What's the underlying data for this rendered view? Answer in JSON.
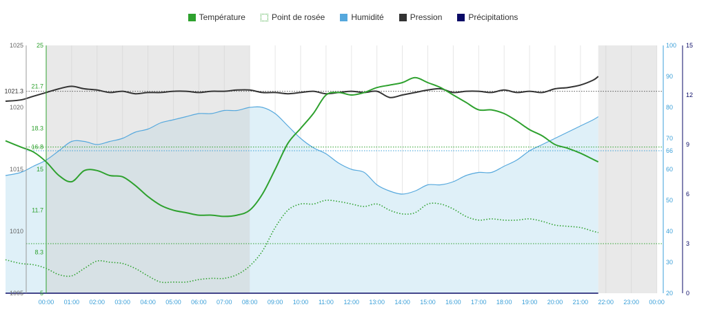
{
  "legend": [
    {
      "label": "Température",
      "color": "#2ea12e",
      "style": "solid"
    },
    {
      "label": "Point de rosée",
      "color": "#2ea12e",
      "style": "dotted"
    },
    {
      "label": "Humidité",
      "color": "#55a8dd",
      "style": "solid"
    },
    {
      "label": "Pression",
      "color": "#333333",
      "style": "solid"
    },
    {
      "label": "Précipitations",
      "color": "#0a0a66",
      "style": "solid"
    }
  ],
  "chart_data": {
    "type": "line",
    "x_labels": [
      "00:00",
      "01:00",
      "02:00",
      "03:00",
      "04:00",
      "05:00",
      "06:00",
      "07:00",
      "08:00",
      "09:00",
      "10:00",
      "11:00",
      "12:00",
      "13:00",
      "14:00",
      "15:00",
      "16:00",
      "17:00",
      "18:00",
      "19:00",
      "20:00",
      "21:00",
      "22:00",
      "23:00",
      "00:00"
    ],
    "night_shading": [
      [
        0,
        8
      ],
      [
        21.7,
        24
      ]
    ],
    "axes": {
      "pressure": {
        "ticks": [
          1005,
          1010,
          1015,
          1020,
          1025
        ],
        "min": 1005,
        "max": 1025,
        "extra_labels": [
          "1021.3"
        ],
        "color": "#666666"
      },
      "temperature": {
        "ticks": [
          "5",
          "8.3",
          "11.7",
          "15",
          "18.3",
          "21.7",
          "25"
        ],
        "min": 5,
        "max": 25,
        "extra_labels": [
          "16.8"
        ],
        "color": "#2ea12e"
      },
      "humidity": {
        "ticks": [
          20,
          30,
          40,
          50,
          60,
          70,
          80,
          90,
          100
        ],
        "min": 20,
        "max": 100,
        "extra_labels": [
          "66"
        ],
        "color": "#3a9fd8"
      },
      "precipitation": {
        "ticks": [
          0,
          3,
          6,
          9,
          12,
          15
        ],
        "min": 0,
        "max": 15,
        "color": "#0a0a66"
      }
    },
    "series": [
      {
        "name": "Humidité",
        "axis": "humidity",
        "color": "#55a8dd",
        "fill": "#dff0f8",
        "x": [
          -1.6,
          -1,
          -0.5,
          0,
          0.5,
          1,
          1.5,
          2,
          2.5,
          3,
          3.5,
          4,
          4.5,
          5,
          5.5,
          6,
          6.5,
          7,
          7.5,
          8,
          8.5,
          9,
          9.5,
          10,
          10.5,
          11,
          11.5,
          12,
          12.5,
          13,
          13.5,
          14,
          14.5,
          15,
          15.5,
          16,
          16.5,
          17,
          17.5,
          18,
          18.5,
          19,
          19.5,
          20,
          20.5,
          21,
          21.5,
          21.7
        ],
        "y": [
          58,
          59,
          61,
          63,
          66,
          69,
          69,
          68,
          69,
          70,
          72,
          73,
          75,
          76,
          77,
          78,
          78,
          79,
          79,
          80,
          80,
          78,
          74,
          70,
          67,
          65,
          62,
          60,
          59,
          55,
          53,
          52,
          53,
          55,
          55,
          56,
          58,
          59,
          59,
          61,
          63,
          66,
          68,
          70,
          72,
          74,
          76,
          77
        ]
      },
      {
        "name": "Pression",
        "axis": "pressure",
        "color": "#333333",
        "x": [
          -1.6,
          -1,
          -0.5,
          0,
          0.5,
          1,
          1.5,
          2,
          2.5,
          3,
          3.5,
          4,
          4.5,
          5,
          5.5,
          6,
          6.5,
          7,
          7.5,
          8,
          8.5,
          9,
          9.5,
          10,
          10.5,
          11,
          11.5,
          12,
          12.5,
          13,
          13.5,
          14,
          14.5,
          15,
          15.5,
          16,
          16.5,
          17,
          17.5,
          18,
          18.5,
          19,
          19.5,
          20,
          20.5,
          21,
          21.5,
          21.7
        ],
        "y": [
          1020.5,
          1020.6,
          1020.9,
          1021.2,
          1021.5,
          1021.7,
          1021.5,
          1021.4,
          1021.2,
          1021.3,
          1021.1,
          1021.2,
          1021.2,
          1021.3,
          1021.3,
          1021.2,
          1021.3,
          1021.3,
          1021.4,
          1021.4,
          1021.2,
          1021.2,
          1021.1,
          1021.2,
          1021.3,
          1021.1,
          1021.2,
          1021.3,
          1021.2,
          1021.3,
          1020.8,
          1021.0,
          1021.2,
          1021.4,
          1021.5,
          1021.2,
          1021.3,
          1021.3,
          1021.2,
          1021.4,
          1021.2,
          1021.3,
          1021.2,
          1021.5,
          1021.6,
          1021.8,
          1022.2,
          1022.5
        ]
      },
      {
        "name": "Température",
        "axis": "temperature",
        "color": "#2ea12e",
        "x": [
          -1.6,
          -1,
          -0.5,
          0,
          0.5,
          1,
          1.5,
          2,
          2.5,
          3,
          3.5,
          4,
          4.5,
          5,
          5.5,
          6,
          6.5,
          7,
          7.5,
          8,
          8.5,
          9,
          9.5,
          10,
          10.5,
          11,
          11.5,
          12,
          12.5,
          13,
          13.5,
          14,
          14.5,
          15,
          15.5,
          16,
          16.5,
          17,
          17.5,
          18,
          18.5,
          19,
          19.5,
          20,
          20.5,
          21,
          21.5,
          21.7
        ],
        "y": [
          17.3,
          16.8,
          16.4,
          15.6,
          14.5,
          14,
          14.9,
          14.9,
          14.5,
          14.4,
          13.7,
          12.8,
          12.1,
          11.7,
          11.5,
          11.3,
          11.3,
          11.2,
          11.3,
          11.7,
          13.0,
          15.0,
          17.1,
          18.3,
          19.5,
          21.0,
          21.2,
          21.0,
          21.2,
          21.6,
          21.8,
          22.0,
          22.4,
          22.0,
          21.6,
          21.0,
          20.4,
          19.8,
          19.8,
          19.5,
          18.9,
          18.2,
          17.7,
          17.0,
          16.7,
          16.3,
          15.8,
          15.6
        ]
      },
      {
        "name": "Point de rosée",
        "axis": "temperature",
        "color": "#2ea12e",
        "dashed": true,
        "x": [
          -1.6,
          -1,
          -0.5,
          0,
          0.5,
          1,
          1.5,
          2,
          2.5,
          3,
          3.5,
          4,
          4.5,
          5,
          5.5,
          6,
          6.5,
          7,
          7.5,
          8,
          8.5,
          9,
          9.5,
          10,
          10.5,
          11,
          11.5,
          12,
          12.5,
          13,
          13.5,
          14,
          14.5,
          15,
          15.5,
          16,
          16.5,
          17,
          17.5,
          18,
          18.5,
          19,
          19.5,
          20,
          20.5,
          21,
          21.5,
          21.7
        ],
        "y": [
          7.7,
          7.4,
          7.3,
          7.0,
          6.5,
          6.4,
          7.0,
          7.6,
          7.5,
          7.4,
          7.0,
          6.4,
          5.9,
          5.9,
          5.9,
          6.1,
          6.2,
          6.2,
          6.5,
          7.2,
          8.4,
          10.3,
          11.7,
          12.2,
          12.2,
          12.5,
          12.4,
          12.2,
          12.0,
          12.2,
          11.7,
          11.4,
          11.5,
          12.2,
          12.2,
          11.8,
          11.2,
          10.9,
          11.0,
          10.9,
          10.9,
          11.0,
          10.8,
          10.5,
          10.4,
          10.3,
          10.0,
          9.9
        ]
      },
      {
        "name": "Précipitations",
        "axis": "precipitation",
        "color": "#0a0a66",
        "x": [
          -1.6,
          21.7
        ],
        "y": [
          0,
          0
        ]
      }
    ],
    "reference_lines": [
      {
        "axis": "pressure",
        "value": 1021.3,
        "color": "#555555"
      },
      {
        "axis": "temperature",
        "value": 16.8,
        "color": "#2ea12e"
      },
      {
        "axis": "humidity",
        "value": 66,
        "color": "#3a9fd8"
      },
      {
        "axis": "precipitation",
        "value": 3,
        "color": "#2ea12e"
      }
    ]
  }
}
